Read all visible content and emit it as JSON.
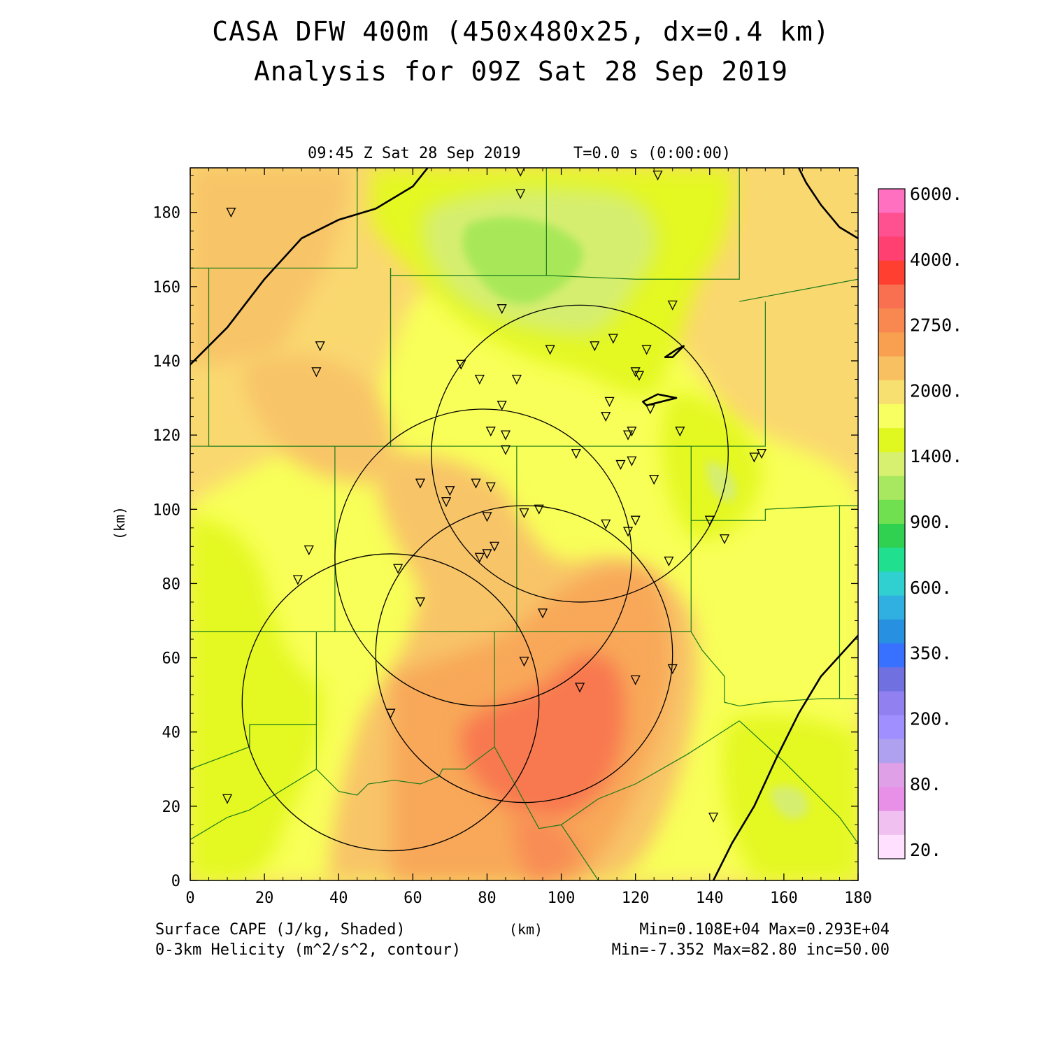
{
  "header": {
    "title_line1": "CASA DFW 400m (450x480x25, dx=0.4 km)",
    "title_line2": "Analysis for 09Z Sat 28 Sep 2019",
    "valid_time": "09:45 Z Sat 28 Sep 2019",
    "forecast_time": "T=0.0 s (0:00:00)"
  },
  "footer": {
    "shaded_label": "Surface CAPE (J/kg, Shaded)",
    "contour_label": "0-3km Helicity (m^2/s^2, contour)",
    "xunit": "(km)",
    "shaded_stats": "Min=0.108E+04 Max=0.293E+04",
    "contour_stats": "Min=-7.352 Max=82.80 inc=50.00"
  },
  "chart_data": {
    "type": "heatmap",
    "xlabel": "(km)",
    "ylabel": "(km)",
    "xlim": [
      0,
      180
    ],
    "ylim": [
      0,
      192
    ],
    "xticks": [
      0,
      20,
      40,
      60,
      80,
      100,
      120,
      140,
      160,
      180
    ],
    "yticks": [
      0,
      20,
      40,
      60,
      80,
      100,
      120,
      140,
      160,
      180
    ],
    "colorbar": {
      "labels": [
        "6000.",
        "4000.",
        "2750.",
        "2000.",
        "1400.",
        "900.",
        "600.",
        "350.",
        "200.",
        "80.",
        "20."
      ],
      "colors": [
        "#ff70c0",
        "#ff5090",
        "#ff4070",
        "#ff4030",
        "#f87050",
        "#f88850",
        "#f8a050",
        "#f8c060",
        "#f8e070",
        "#f8ff60",
        "#e0f820",
        "#d8f070",
        "#a8e860",
        "#70e050",
        "#30d050",
        "#20e090",
        "#30d0d0",
        "#30b0e0",
        "#2890e0",
        "#3870ff",
        "#7070e0",
        "#9080f0",
        "#a090ff",
        "#b0a0f0",
        "#e0a0e8",
        "#e890e8",
        "#f0c0f0",
        "#ffe0ff"
      ]
    },
    "cape_regions": [
      {
        "label": "background",
        "value": 1900,
        "color": "#fad870"
      },
      {
        "label": "northwest",
        "value": 2000,
        "color": "#f8c468"
      },
      {
        "label": "north-central",
        "value": 1600,
        "color": "#e4f820"
      },
      {
        "label": "north-central-core",
        "value": 1400,
        "color": "#d6ee70"
      },
      {
        "label": "north-central-min",
        "value": 1100,
        "color": "#a8e858"
      },
      {
        "label": "west",
        "value": 1650,
        "color": "#e4f820"
      },
      {
        "label": "central",
        "value": 1800,
        "color": "#f8ff58"
      },
      {
        "label": "east",
        "value": 1800,
        "color": "#f8ff58"
      },
      {
        "label": "southeast",
        "value": 1600,
        "color": "#e4f820"
      },
      {
        "label": "south-central",
        "value": 2300,
        "color": "#f8a858"
      },
      {
        "label": "south-central-max",
        "value": 2900,
        "color": "#f87850"
      }
    ],
    "helicity_contours": [
      {
        "level": 50,
        "x": [
          0,
          10,
          20,
          30,
          40,
          50,
          60,
          64
        ],
        "y": [
          139,
          149,
          162,
          173,
          178,
          181,
          187,
          192
        ]
      },
      {
        "level": 50,
        "x": [
          141,
          146,
          152,
          158,
          164,
          170,
          180
        ],
        "y": [
          0,
          10,
          20,
          33,
          45,
          55,
          66
        ]
      },
      {
        "level": 50,
        "x": [
          164,
          166,
          170,
          175,
          180
        ],
        "y": [
          192,
          188,
          182,
          176,
          173
        ]
      },
      {
        "level": 50,
        "x": [
          122,
          126,
          131,
          123,
          122
        ],
        "y": [
          129,
          131,
          130,
          128,
          129
        ]
      },
      {
        "level": 50,
        "x": [
          128,
          131,
          133,
          130,
          128
        ],
        "y": [
          141,
          143,
          144,
          141,
          141
        ]
      }
    ],
    "radar_rings": [
      {
        "cx": 105,
        "cy": 115,
        "r": 40
      },
      {
        "cx": 79,
        "cy": 87,
        "r": 40
      },
      {
        "cx": 90,
        "cy": 61,
        "r": 40
      },
      {
        "cx": 54,
        "cy": 48,
        "r": 40
      }
    ],
    "stations": [
      [
        11,
        180
      ],
      [
        35,
        144
      ],
      [
        34,
        137
      ],
      [
        89,
        185
      ],
      [
        89,
        191
      ],
      [
        126,
        190
      ],
      [
        84,
        154
      ],
      [
        130,
        155
      ],
      [
        97,
        143
      ],
      [
        109,
        144
      ],
      [
        114,
        146
      ],
      [
        123,
        143
      ],
      [
        73,
        139
      ],
      [
        78,
        135
      ],
      [
        88,
        135
      ],
      [
        120,
        137
      ],
      [
        121,
        136
      ],
      [
        113,
        129
      ],
      [
        112,
        125
      ],
      [
        84,
        128
      ],
      [
        81,
        121
      ],
      [
        85,
        120
      ],
      [
        119,
        121
      ],
      [
        118,
        120
      ],
      [
        124,
        127
      ],
      [
        132,
        121
      ],
      [
        85,
        116
      ],
      [
        104,
        115
      ],
      [
        116,
        112
      ],
      [
        119,
        113
      ],
      [
        125,
        108
      ],
      [
        62,
        107
      ],
      [
        70,
        105
      ],
      [
        77,
        107
      ],
      [
        81,
        106
      ],
      [
        69,
        102
      ],
      [
        80,
        98
      ],
      [
        90,
        99
      ],
      [
        94,
        100
      ],
      [
        112,
        96
      ],
      [
        118,
        94
      ],
      [
        120,
        97
      ],
      [
        140,
        97
      ],
      [
        144,
        92
      ],
      [
        32,
        89
      ],
      [
        29,
        81
      ],
      [
        56,
        84
      ],
      [
        82,
        90
      ],
      [
        80,
        88
      ],
      [
        78,
        87
      ],
      [
        62,
        75
      ],
      [
        95,
        72
      ],
      [
        129,
        86
      ],
      [
        90,
        59
      ],
      [
        105,
        52
      ],
      [
        120,
        54
      ],
      [
        130,
        57
      ],
      [
        54,
        45
      ],
      [
        10,
        22
      ],
      [
        141,
        17
      ],
      [
        154,
        115
      ],
      [
        152,
        114
      ]
    ],
    "county_lines": [
      [
        [
          0,
          165
        ],
        [
          45,
          165
        ]
      ],
      [
        [
          45,
          165
        ],
        [
          45,
          192
        ]
      ],
      [
        [
          5,
          165
        ],
        [
          5,
          117
        ],
        [
          54,
          117
        ],
        [
          54,
          165
        ]
      ],
      [
        [
          54,
          165
        ],
        [
          54,
          163
        ],
        [
          96,
          163
        ],
        [
          96,
          192
        ]
      ],
      [
        [
          54,
          163
        ],
        [
          54,
          117
        ]
      ],
      [
        [
          96,
          163
        ],
        [
          120,
          162
        ],
        [
          148,
          162
        ],
        [
          148,
          192
        ]
      ],
      [
        [
          148,
          156
        ],
        [
          180,
          162
        ]
      ],
      [
        [
          155,
          156
        ],
        [
          155,
          117
        ],
        [
          140,
          117
        ]
      ],
      [
        [
          0,
          117
        ],
        [
          39,
          117
        ],
        [
          39,
          67
        ],
        [
          0,
          67
        ]
      ],
      [
        [
          39,
          117
        ],
        [
          131,
          117
        ],
        [
          140,
          117
        ]
      ],
      [
        [
          88,
          117
        ],
        [
          88,
          67
        ],
        [
          39,
          67
        ]
      ],
      [
        [
          131,
          117
        ],
        [
          135,
          117
        ],
        [
          135,
          97
        ],
        [
          155,
          97
        ],
        [
          155,
          100
        ],
        [
          175,
          101
        ],
        [
          180,
          101
        ]
      ],
      [
        [
          135,
          97
        ],
        [
          135,
          67
        ],
        [
          88,
          67
        ]
      ],
      [
        [
          34,
          67
        ],
        [
          34,
          42
        ],
        [
          16,
          42
        ],
        [
          16,
          36
        ],
        [
          0,
          30
        ]
      ],
      [
        [
          34,
          42
        ],
        [
          34,
          30
        ],
        [
          16,
          19
        ],
        [
          10,
          17
        ],
        [
          0,
          11
        ]
      ],
      [
        [
          34,
          30
        ],
        [
          40,
          24
        ],
        [
          45,
          23
        ],
        [
          48,
          26
        ],
        [
          55,
          27
        ],
        [
          62,
          26
        ],
        [
          67,
          28
        ],
        [
          68,
          30
        ],
        [
          74,
          30
        ],
        [
          82,
          36
        ]
      ],
      [
        [
          82,
          36
        ],
        [
          82,
          67
        ]
      ],
      [
        [
          82,
          36
        ],
        [
          94,
          14
        ],
        [
          100,
          15
        ],
        [
          110,
          22
        ],
        [
          120,
          26
        ],
        [
          134,
          34
        ],
        [
          148,
          43
        ]
      ],
      [
        [
          100,
          15
        ],
        [
          110,
          0
        ]
      ],
      [
        [
          135,
          67
        ],
        [
          138,
          62
        ],
        [
          144,
          55
        ],
        [
          144,
          48
        ],
        [
          148,
          47
        ],
        [
          155,
          48
        ],
        [
          170,
          49
        ],
        [
          180,
          49
        ]
      ],
      [
        [
          148,
          43
        ],
        [
          160,
          32
        ],
        [
          170,
          22
        ],
        [
          175,
          17
        ],
        [
          180,
          10
        ]
      ],
      [
        [
          175,
          101
        ],
        [
          175,
          49
        ]
      ],
      [
        [
          0,
          30
        ],
        [
          0,
          37
        ]
      ]
    ]
  }
}
